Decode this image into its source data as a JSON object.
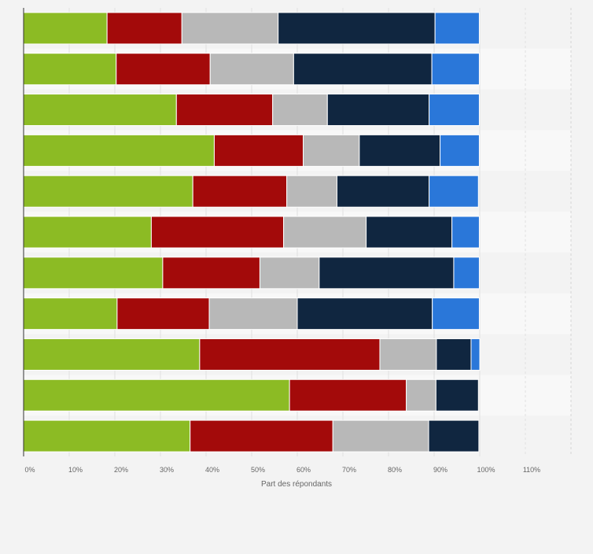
{
  "chart_data": {
    "type": "bar",
    "orientation": "horizontal",
    "stacked": true,
    "title": "",
    "xlabel": "Part des répondants",
    "ylabel": "",
    "xlim": [
      0,
      120
    ],
    "x_ticks": [
      "0%",
      "10%",
      "20%",
      "30%",
      "40%",
      "50%",
      "60%",
      "70%",
      "80%",
      "90%",
      "100%",
      "110%"
    ],
    "x_tick_values": [
      0,
      10,
      20,
      30,
      40,
      50,
      60,
      70,
      80,
      90,
      100,
      110
    ],
    "grid": true,
    "categories": [
      "",
      "",
      "",
      "",
      "",
      "",
      "",
      "",
      "",
      "",
      ""
    ],
    "series": [
      {
        "name": "",
        "color": "#8cbb24",
        "values": [
          18.3,
          20.3,
          33.5,
          41.8,
          37.1,
          28.0,
          30.5,
          20.5,
          38.6,
          58.3,
          36.5
        ]
      },
      {
        "name": "",
        "color": "#a30a0a",
        "values": [
          16.4,
          20.6,
          21.1,
          19.5,
          20.6,
          29.0,
          21.3,
          20.2,
          39.5,
          25.6,
          31.3
        ]
      },
      {
        "name": "",
        "color": "#b8b8b8",
        "values": [
          21.1,
          18.3,
          12.0,
          12.3,
          11.0,
          18.1,
          13.0,
          19.3,
          12.4,
          6.5,
          21.0
        ]
      },
      {
        "name": "",
        "color": "#102640",
        "values": [
          34.4,
          30.3,
          22.3,
          17.7,
          20.2,
          18.8,
          29.5,
          29.6,
          7.6,
          9.3,
          11.0
        ]
      },
      {
        "name": "",
        "color": "#2a77d9",
        "values": [
          9.7,
          10.4,
          11.0,
          8.6,
          10.8,
          6.0,
          5.6,
          10.3,
          1.9,
          0.0,
          0.0
        ]
      }
    ]
  }
}
